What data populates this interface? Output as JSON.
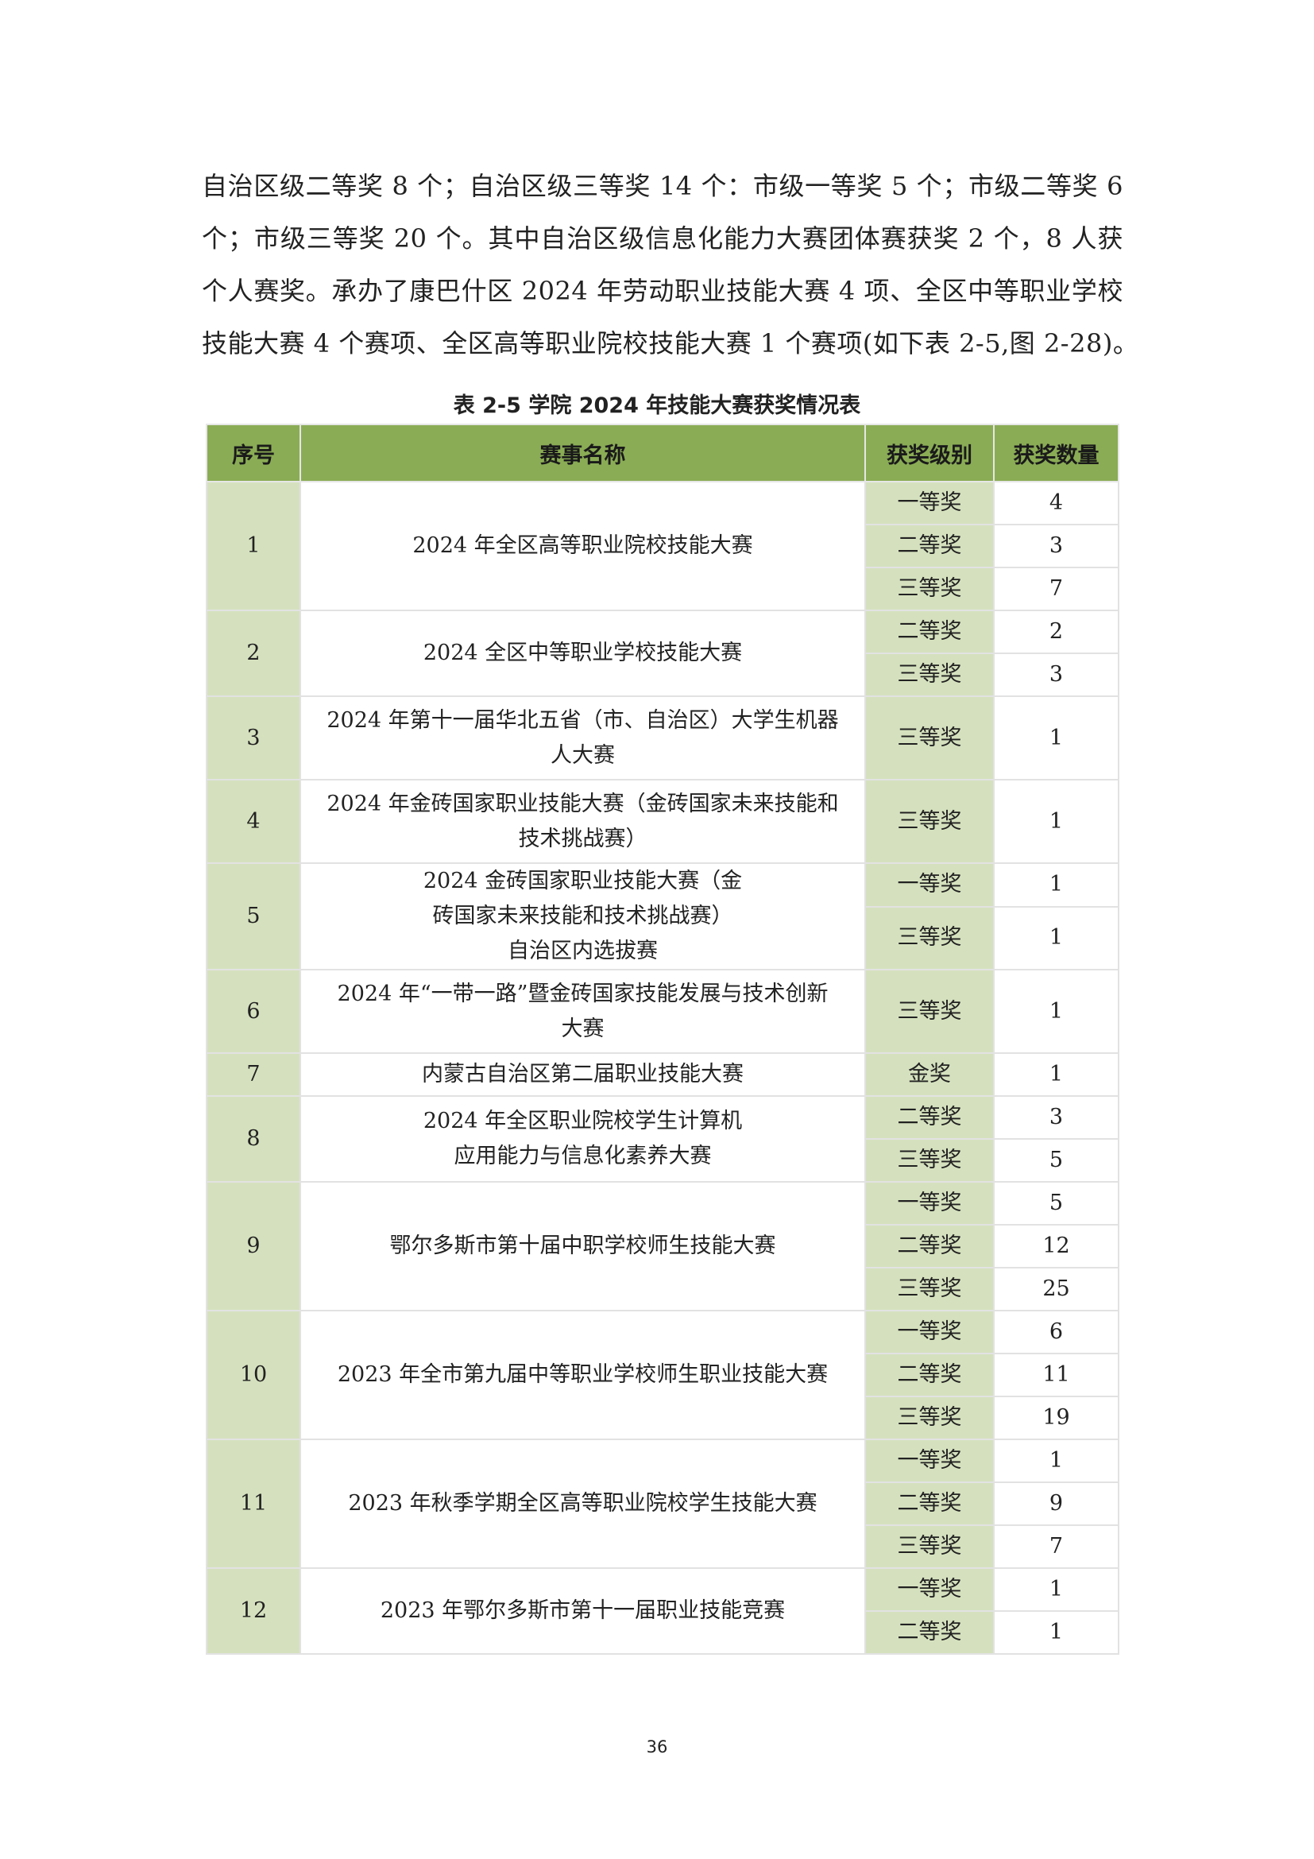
{
  "paragraph": [
    "自治区级二等奖 8 个；自治区级三等奖 14 个：市级一等奖 5 个；市级二等奖 6",
    "个；市级三等奖 20 个。其中自治区级信息化能力大赛团体赛获奖 2 个，8 人获",
    "个人赛奖。承办了康巴什区 2024 年劳动职业技能大赛 4 项、全区中等职业学校",
    "技能大赛 4 个赛项、全区高等职业院校技能大赛 1 个赛项(如下表 2-5,图 2-28)。"
  ],
  "caption": "表  2-5  学院 2024 年技能大赛获奖情况表",
  "table": {
    "headers": [
      "序号",
      "赛事名称",
      "获奖级别",
      "获奖数量"
    ],
    "header_color": "#8aac55",
    "shade_color": "#d5e1be",
    "groups": [
      {
        "no": "1",
        "name": [
          "2024 年全区高等职业院校技能大赛"
        ],
        "awards": [
          {
            "level": "一等奖",
            "count": "4"
          },
          {
            "level": "二等奖",
            "count": "3"
          },
          {
            "level": "三等奖",
            "count": "7"
          }
        ]
      },
      {
        "no": "2",
        "name": [
          "2024 全区中等职业学校技能大赛"
        ],
        "awards": [
          {
            "level": "二等奖",
            "count": "2"
          },
          {
            "level": "三等奖",
            "count": "3"
          }
        ]
      },
      {
        "no": "3",
        "name": [
          "2024 年第十一届华北五省（市、自治区）大学生机器",
          "人大赛"
        ],
        "awards": [
          {
            "level": "三等奖",
            "count": "1"
          }
        ]
      },
      {
        "no": "4",
        "name": [
          "2024 年金砖国家职业技能大赛（金砖国家未来技能和",
          "技术挑战赛）"
        ],
        "awards": [
          {
            "level": "三等奖",
            "count": "1"
          }
        ]
      },
      {
        "no": "5",
        "name": [
          "2024 金砖国家职业技能大赛（金",
          "砖国家未来技能和技术挑战赛）",
          "自治区内选拔赛"
        ],
        "awards": [
          {
            "level": "一等奖",
            "count": "1"
          },
          {
            "level": "三等奖",
            "count": "1"
          }
        ]
      },
      {
        "no": "6",
        "name": [
          "2024 年“一带一路”暨金砖国家技能发展与技术创新",
          "大赛"
        ],
        "awards": [
          {
            "level": "三等奖",
            "count": "1"
          }
        ]
      },
      {
        "no": "7",
        "name": [
          "内蒙古自治区第二届职业技能大赛"
        ],
        "awards": [
          {
            "level": "金奖",
            "count": "1"
          }
        ]
      },
      {
        "no": "8",
        "name": [
          "2024  年全区职业院校学生计算机",
          "应用能力与信息化素养大赛"
        ],
        "awards": [
          {
            "level": "二等奖",
            "count": "3"
          },
          {
            "level": "三等奖",
            "count": "5"
          }
        ]
      },
      {
        "no": "9",
        "name": [
          "鄂尔多斯市第十届中职学校师生技能大赛"
        ],
        "awards": [
          {
            "level": "一等奖",
            "count": "5"
          },
          {
            "level": "二等奖",
            "count": "12"
          },
          {
            "level": "三等奖",
            "count": "25"
          }
        ]
      },
      {
        "no": "10",
        "name": [
          "2023 年全市第九届中等职业学校师生职业技能大赛"
        ],
        "awards": [
          {
            "level": "一等奖",
            "count": "6"
          },
          {
            "level": "二等奖",
            "count": "11"
          },
          {
            "level": "三等奖",
            "count": "19"
          }
        ]
      },
      {
        "no": "11",
        "name": [
          "2023 年秋季学期全区高等职业院校学生技能大赛"
        ],
        "awards": [
          {
            "level": "一等奖",
            "count": "1"
          },
          {
            "level": "二等奖",
            "count": "9"
          },
          {
            "level": "三等奖",
            "count": "7"
          }
        ]
      },
      {
        "no": "12",
        "name": [
          "2023 年鄂尔多斯市第十一届职业技能竞赛"
        ],
        "awards": [
          {
            "level": "一等奖",
            "count": "1"
          },
          {
            "level": "二等奖",
            "count": "1"
          }
        ]
      }
    ]
  },
  "page_number": "36"
}
